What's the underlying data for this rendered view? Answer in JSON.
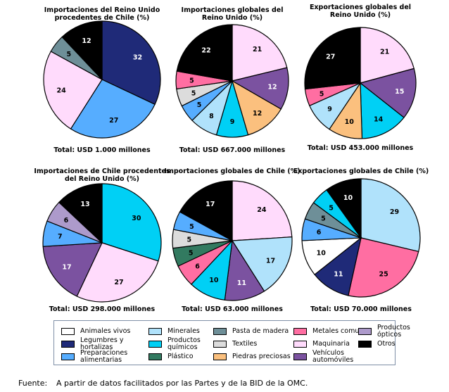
{
  "categories": {
    "animales": {
      "label": "Animales vivos",
      "color": "#ffffff",
      "text": "#000000"
    },
    "legumbres": {
      "label": "Legumbres y hortalizas",
      "color": "#1f2a78",
      "text": "#ffffff"
    },
    "preparaciones": {
      "label": "Preparaciones alimentarias",
      "color": "#56adff",
      "text": "#000000"
    },
    "minerales": {
      "label": "Minerales",
      "color": "#b0e2fb",
      "text": "#000000"
    },
    "quimicos": {
      "label": "Productos químicos",
      "color": "#00d0f5",
      "text": "#000000"
    },
    "plastico": {
      "label": "Plástico",
      "color": "#327a60",
      "text": "#000000"
    },
    "pasta": {
      "label": "Pasta de madera",
      "color": "#6e8f98",
      "text": "#000000"
    },
    "textiles": {
      "label": "Textiles",
      "color": "#dcdcdc",
      "text": "#000000"
    },
    "piedras": {
      "label": "Piedras preciosas",
      "color": "#fbc07e",
      "text": "#000000"
    },
    "metales": {
      "label": "Metales comunes",
      "color": "#ff6ea2",
      "text": "#000000"
    },
    "maquinaria": {
      "label": "Maquinaria",
      "color": "#ffdbfc",
      "text": "#000000"
    },
    "vehiculos": {
      "label": "Vehículos automóviles",
      "color": "#7b52a0",
      "text": "#ffffff"
    },
    "opticos": {
      "label": "Productos ópticos",
      "color": "#ad9acb",
      "text": "#000000"
    },
    "otros": {
      "label": "Otros",
      "color": "#000000",
      "text": "#ffffff"
    }
  },
  "legend": [
    {
      "key": "animales",
      "lines": [
        "Animales vivos"
      ]
    },
    {
      "key": "legumbres",
      "lines": [
        "Legumbres y",
        "hortalizas"
      ]
    },
    {
      "key": "preparaciones",
      "lines": [
        "Preparaciones",
        "alimentarias"
      ]
    },
    {
      "key": "minerales",
      "lines": [
        "Minerales"
      ]
    },
    {
      "key": "quimicos",
      "lines": [
        "Productos",
        "químicos"
      ]
    },
    {
      "key": "plastico",
      "lines": [
        "Plástico"
      ]
    },
    {
      "key": "pasta",
      "lines": [
        "Pasta de madera"
      ]
    },
    {
      "key": "textiles",
      "lines": [
        "Textiles"
      ]
    },
    {
      "key": "piedras",
      "lines": [
        "Piedras preciosas"
      ]
    },
    {
      "key": "metales",
      "lines": [
        "Metales comunes"
      ]
    },
    {
      "key": "maquinaria",
      "lines": [
        "Maquinaria"
      ]
    },
    {
      "key": "vehiculos",
      "lines": [
        "Vehículos",
        "automóviles"
      ]
    },
    {
      "key": "opticos",
      "lines": [
        "Productos",
        "ópticos"
      ]
    },
    {
      "key": "otros",
      "lines": [
        "Otros"
      ]
    }
  ],
  "source": {
    "label": "Fuente:",
    "text": "A partir de datos facilitados por las Partes y de la BID de la OMC."
  },
  "chart_data": [
    {
      "type": "pie",
      "title": [
        "Importaciones del Reino Unido",
        "procedentes de Chile (%)"
      ],
      "total": "Total: USD 1.000 millones",
      "slices": [
        {
          "key": "legumbres",
          "value": 32
        },
        {
          "key": "preparaciones",
          "value": 27
        },
        {
          "key": "maquinaria",
          "value": 24
        },
        {
          "key": "pasta",
          "value": 5
        },
        {
          "key": "otros",
          "value": 12
        }
      ]
    },
    {
      "type": "pie",
      "title": [
        "Importaciones globales del",
        "Reino Unido (%)"
      ],
      "total": "Total: USD 667.000 millones",
      "slices": [
        {
          "key": "maquinaria",
          "value": 21
        },
        {
          "key": "vehiculos",
          "value": 12
        },
        {
          "key": "piedras",
          "value": 12
        },
        {
          "key": "quimicos",
          "value": 9
        },
        {
          "key": "minerales",
          "value": 8
        },
        {
          "key": "preparaciones",
          "value": 5
        },
        {
          "key": "textiles",
          "value": 5
        },
        {
          "key": "metales",
          "value": 5
        },
        {
          "key": "otros",
          "value": 22
        }
      ]
    },
    {
      "type": "pie",
      "title": [
        "Exportaciones globales del",
        "Reino Unido (%)"
      ],
      "total": "Total: USD 453.000 millones",
      "slices": [
        {
          "key": "maquinaria",
          "value": 21
        },
        {
          "key": "vehiculos",
          "value": 15
        },
        {
          "key": "quimicos",
          "value": 14
        },
        {
          "key": "piedras",
          "value": 10
        },
        {
          "key": "minerales",
          "value": 9
        },
        {
          "key": "metales",
          "value": 5
        },
        {
          "key": "otros",
          "value": 27
        }
      ]
    },
    {
      "type": "pie",
      "title": [
        "Importaciones de Chile procedentes",
        "del Reino Unido (%)"
      ],
      "total": "Total: USD 298.000 millones",
      "slices": [
        {
          "key": "quimicos",
          "value": 30
        },
        {
          "key": "maquinaria",
          "value": 27
        },
        {
          "key": "vehiculos",
          "value": 17
        },
        {
          "key": "preparaciones",
          "value": 7
        },
        {
          "key": "opticos",
          "value": 6
        },
        {
          "key": "otros",
          "value": 13
        }
      ]
    },
    {
      "type": "pie",
      "title": [
        "Importaciones globales de Chile (%)"
      ],
      "total": "Total: USD 63.000 millones",
      "slices": [
        {
          "key": "maquinaria",
          "value": 24
        },
        {
          "key": "minerales",
          "value": 17
        },
        {
          "key": "vehiculos",
          "value": 11
        },
        {
          "key": "quimicos",
          "value": 10
        },
        {
          "key": "metales",
          "value": 6
        },
        {
          "key": "plastico",
          "value": 5
        },
        {
          "key": "textiles",
          "value": 5
        },
        {
          "key": "preparaciones",
          "value": 5
        },
        {
          "key": "otros",
          "value": 17
        }
      ]
    },
    {
      "type": "pie",
      "title": [
        "Exportaciones globales de Chile (%)"
      ],
      "total": "Total:  USD 70.000 millones",
      "slices": [
        {
          "key": "minerales",
          "value": 29
        },
        {
          "key": "metales",
          "value": 25
        },
        {
          "key": "legumbres",
          "value": 11
        },
        {
          "key": "animales",
          "value": 10
        },
        {
          "key": "preparaciones",
          "value": 6
        },
        {
          "key": "pasta",
          "value": 5
        },
        {
          "key": "quimicos",
          "value": 5
        },
        {
          "key": "otros",
          "value": 10
        }
      ]
    }
  ]
}
